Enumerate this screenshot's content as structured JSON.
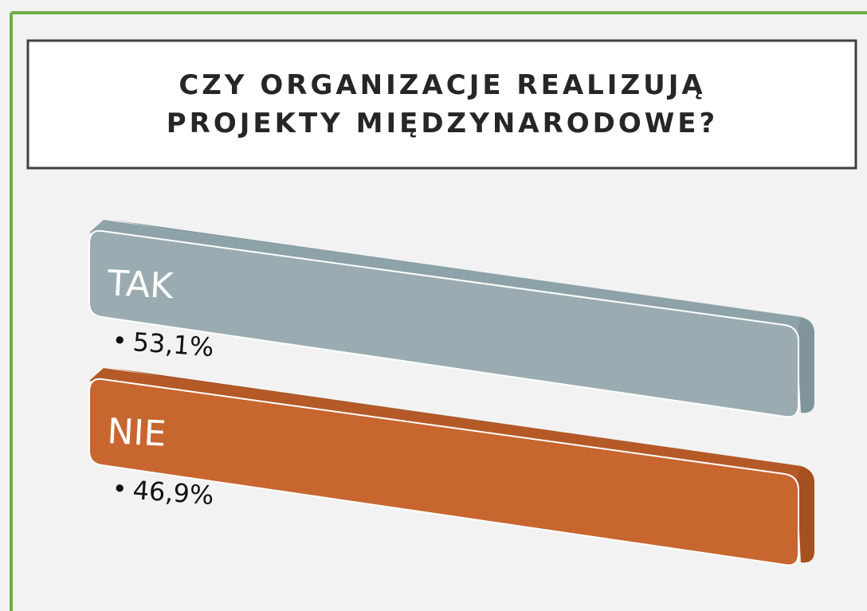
{
  "title": [
    "CZY ORGANIZACJE REALIZUJĄ",
    "PROJEKTY MIĘDZYNARODOWE?"
  ],
  "items": [
    {
      "label": "TAK",
      "value": "53,1%"
    },
    {
      "label": "NIE",
      "value": "46,9%"
    }
  ]
}
